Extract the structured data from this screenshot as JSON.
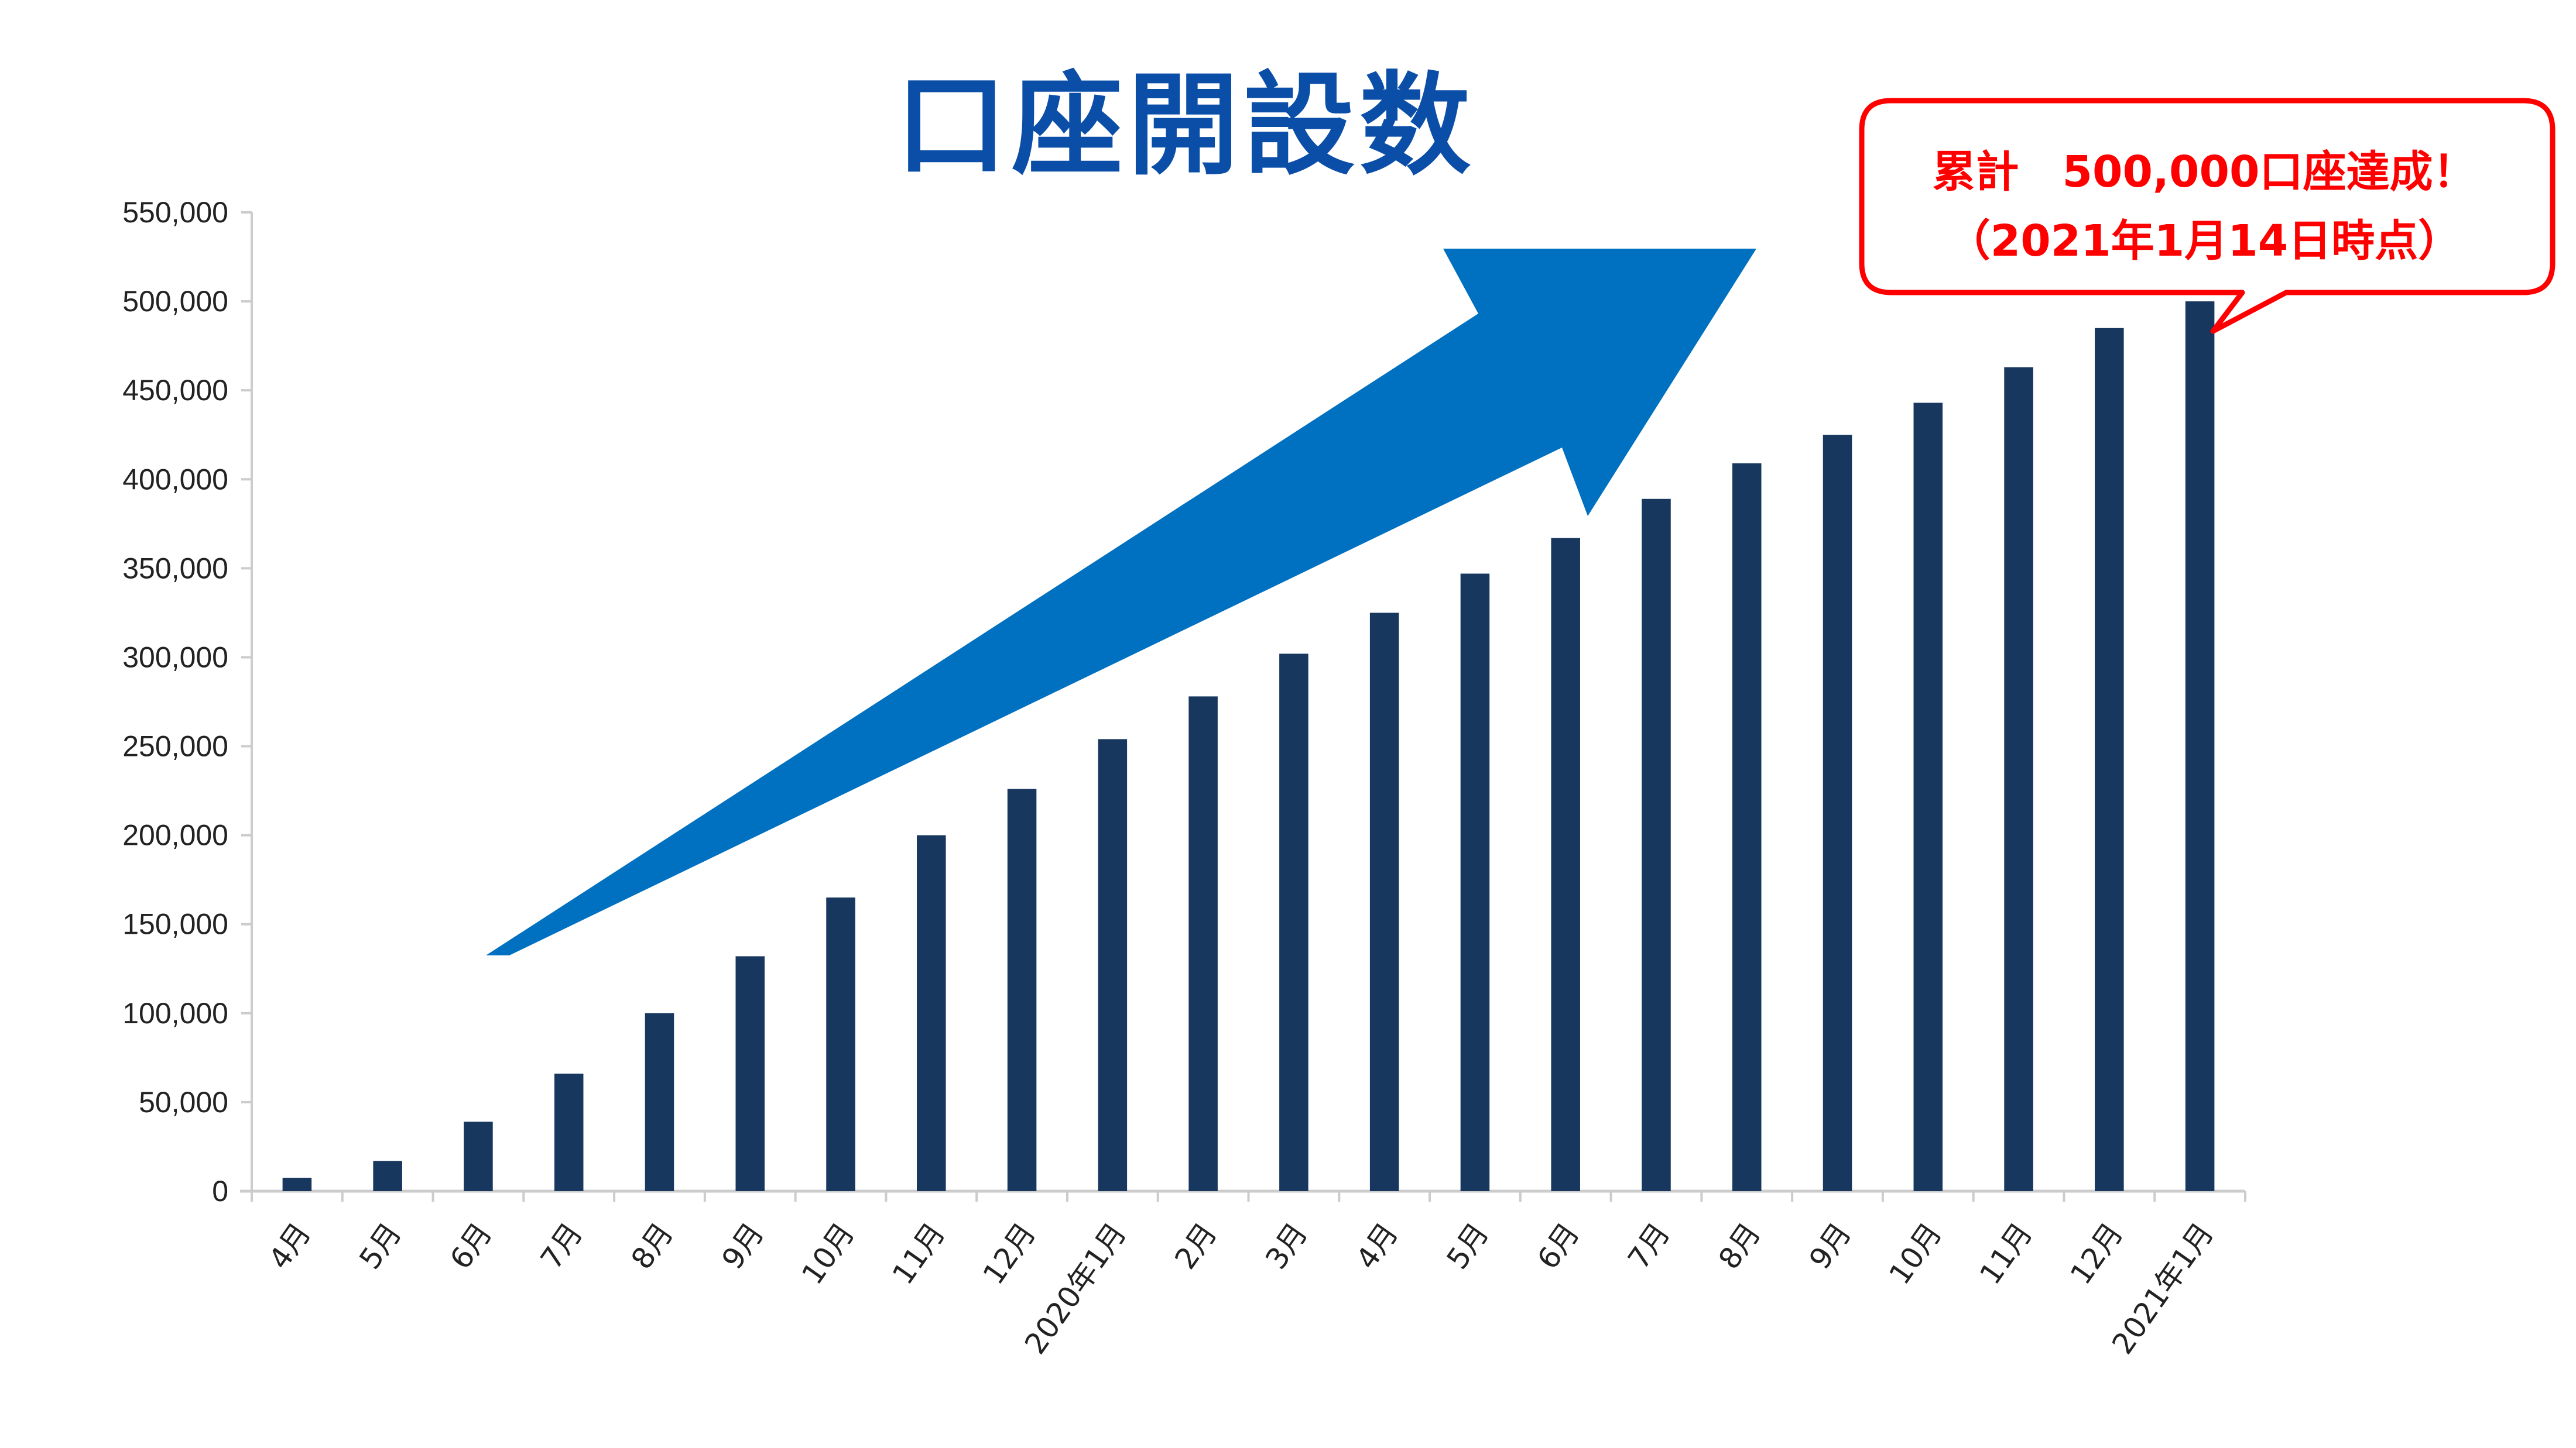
{
  "title": "口座開設数",
  "callout": {
    "line1": "累計　500,000口座達成！",
    "line2": "（2021年1月14日時点）",
    "border_color": "#ff0000"
  },
  "colors": {
    "bar": "#17375e",
    "arrow": "#0070c0",
    "title": "#0b4ea8",
    "axis": "#cccccc"
  },
  "chart_data": {
    "type": "bar",
    "title": "口座開設数",
    "xlabel": "",
    "ylabel": "",
    "ylim": [
      0,
      550000
    ],
    "yticks": [
      0,
      50000,
      100000,
      150000,
      200000,
      250000,
      300000,
      350000,
      400000,
      450000,
      500000,
      550000
    ],
    "ytick_labels": [
      "0",
      "50,000",
      "100,000",
      "150,000",
      "200,000",
      "250,000",
      "300,000",
      "350,000",
      "400,000",
      "450,000",
      "500,000",
      "550,000"
    ],
    "categories": [
      "4月",
      "5月",
      "6月",
      "7月",
      "8月",
      "9月",
      "10月",
      "11月",
      "12月",
      "2020年1月",
      "2月",
      "3月",
      "4月",
      "5月",
      "6月",
      "7月",
      "8月",
      "9月",
      "10月",
      "11月",
      "12月",
      "2021年1月"
    ],
    "values": [
      7500,
      17000,
      39000,
      66000,
      100000,
      132000,
      165000,
      200000,
      226000,
      254000,
      278000,
      302000,
      325000,
      347000,
      367000,
      389000,
      409000,
      425000,
      443000,
      463000,
      485000,
      500000
    ],
    "grid": false,
    "legend": null,
    "annotations": [
      "累計　500,000口座達成！（2021年1月14日時点）",
      "upward trend arrow"
    ]
  }
}
